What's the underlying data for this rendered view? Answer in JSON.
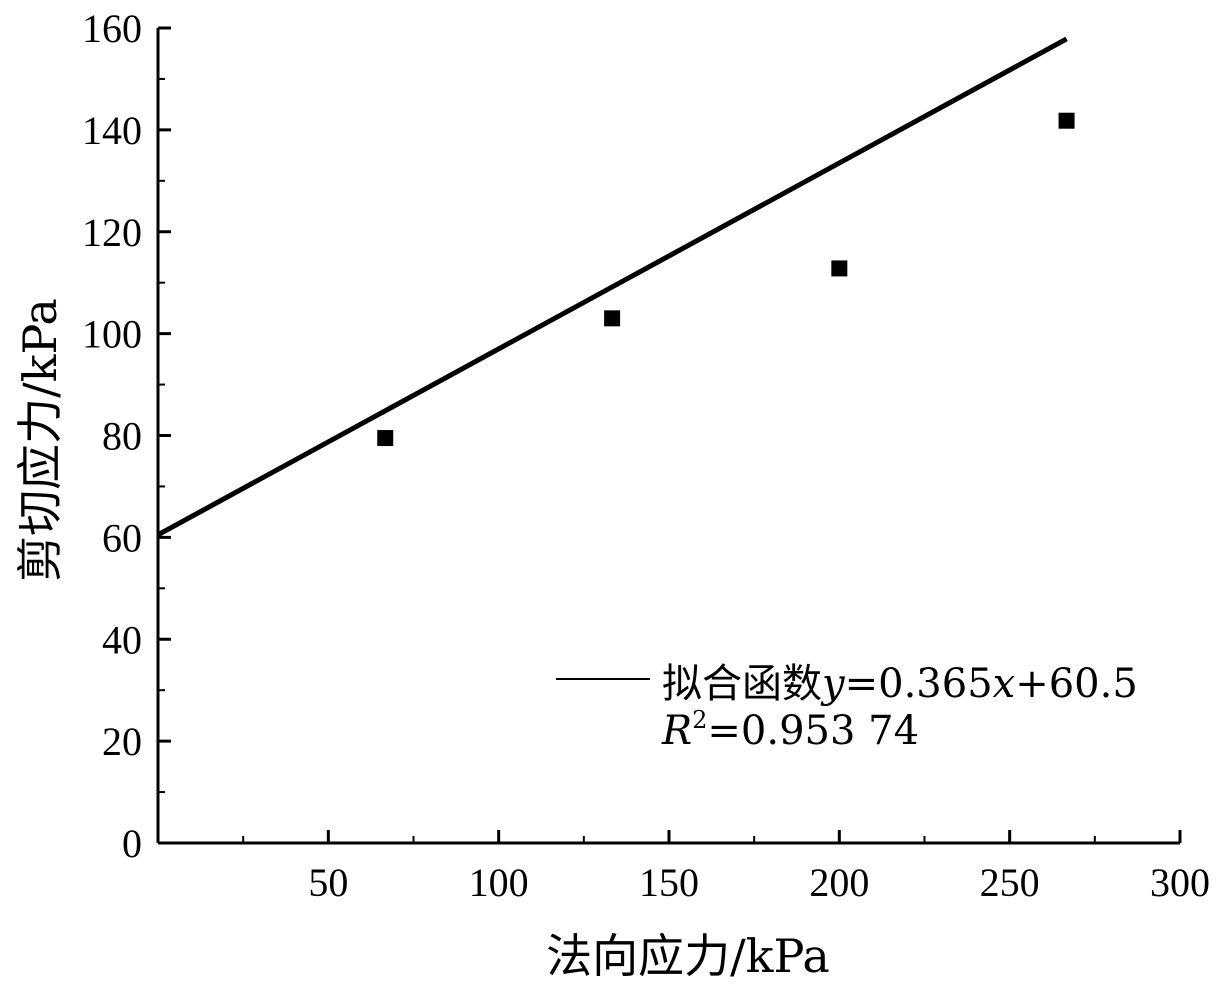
{
  "chart_data": {
    "type": "scatter",
    "xlabel": "法向应力/kPa",
    "ylabel": "剪切应力/kPa",
    "xlim": [
      0,
      300
    ],
    "ylim": [
      0,
      160
    ],
    "x_ticks": [
      50,
      100,
      150,
      200,
      250,
      300
    ],
    "y_ticks": [
      0,
      20,
      40,
      60,
      80,
      100,
      120,
      140,
      160
    ],
    "points": [
      {
        "x": 66.7,
        "y": 79.5
      },
      {
        "x": 133.3,
        "y": 103.0
      },
      {
        "x": 200.0,
        "y": 112.8
      },
      {
        "x": 266.7,
        "y": 141.8
      }
    ],
    "fit": {
      "slope": 0.365,
      "intercept": 60.5,
      "x_start": 0,
      "x_end": 266.7
    },
    "legend": {
      "prefix": "拟合函数",
      "y_var": "y",
      "eq_mid": "=0.365",
      "x_var": "x",
      "eq_end": "+60.5",
      "r_var": "R",
      "r_sup": "2",
      "r_value": "=0.953 74",
      "position": "lower-right"
    }
  }
}
